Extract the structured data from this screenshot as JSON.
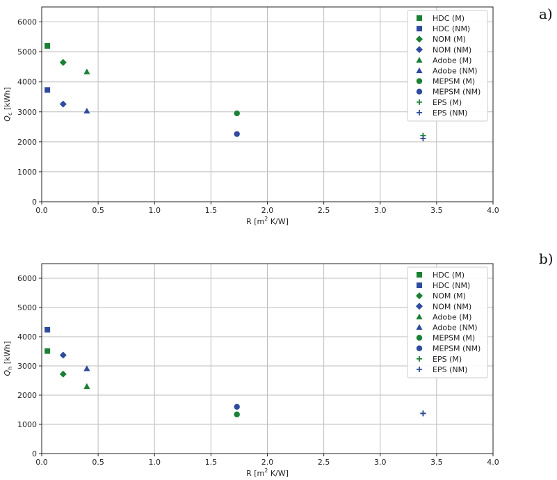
{
  "colors": {
    "M": "#1a8033",
    "NM": "#2f4b9e"
  },
  "chart_data": [
    {
      "type": "scatter",
      "panel_label": "a)",
      "title": "",
      "xlabel": "R [m",
      "xlabel_sup": "2",
      "xlabel_tail": " K/W]",
      "ylabel": "Q",
      "ylabel_sub": "c",
      "ylabel_tail": " [kWh]",
      "xlim": [
        0,
        4.0
      ],
      "ylim": [
        0,
        6500
      ],
      "xticks": [
        "0.0",
        "0.5",
        "1.0",
        "1.5",
        "2.0",
        "2.5",
        "3.0",
        "3.5",
        "4.0"
      ],
      "yticks": [
        "0",
        "1000",
        "2000",
        "3000",
        "4000",
        "5000",
        "6000"
      ],
      "grid": true,
      "legend_position": "top-right",
      "series": [
        {
          "name": "HDC (M)",
          "marker": "square",
          "group": "M",
          "x": [
            0.05
          ],
          "y": [
            5200
          ]
        },
        {
          "name": "HDC (NM)",
          "marker": "square",
          "group": "NM",
          "x": [
            0.05
          ],
          "y": [
            3730
          ]
        },
        {
          "name": "NOM (M)",
          "marker": "diamond",
          "group": "M",
          "x": [
            0.19
          ],
          "y": [
            4650
          ]
        },
        {
          "name": "NOM (NM)",
          "marker": "diamond",
          "group": "NM",
          "x": [
            0.19
          ],
          "y": [
            3260
          ]
        },
        {
          "name": "Adobe (M)",
          "marker": "triangle",
          "group": "M",
          "x": [
            0.4
          ],
          "y": [
            4340
          ]
        },
        {
          "name": "Adobe (NM)",
          "marker": "triangle",
          "group": "NM",
          "x": [
            0.4
          ],
          "y": [
            3030
          ]
        },
        {
          "name": "MEPSM (M)",
          "marker": "circle",
          "group": "M",
          "x": [
            1.73
          ],
          "y": [
            2950
          ]
        },
        {
          "name": "MEPSM (NM)",
          "marker": "circle",
          "group": "NM",
          "x": [
            1.73
          ],
          "y": [
            2260
          ]
        },
        {
          "name": "EPS (M)",
          "marker": "plus",
          "group": "M",
          "x": [
            3.38
          ],
          "y": [
            2210
          ]
        },
        {
          "name": "EPS (NM)",
          "marker": "plus",
          "group": "NM",
          "x": [
            3.38
          ],
          "y": [
            2110
          ]
        }
      ]
    },
    {
      "type": "scatter",
      "panel_label": "b)",
      "title": "",
      "xlabel": "R [m",
      "xlabel_sup": "2",
      "xlabel_tail": " K/W]",
      "ylabel": "Q",
      "ylabel_sub": "h",
      "ylabel_tail": " [kWh]",
      "xlim": [
        0,
        4.0
      ],
      "ylim": [
        0,
        6500
      ],
      "xticks": [
        "0.0",
        "0.5",
        "1.0",
        "1.5",
        "2.0",
        "2.5",
        "3.0",
        "3.5",
        "4.0"
      ],
      "yticks": [
        "0",
        "1000",
        "2000",
        "3000",
        "4000",
        "5000",
        "6000"
      ],
      "grid": true,
      "legend_position": "top-right",
      "series": [
        {
          "name": "HDC (M)",
          "marker": "square",
          "group": "M",
          "x": [
            0.05
          ],
          "y": [
            3510
          ]
        },
        {
          "name": "HDC (NM)",
          "marker": "square",
          "group": "NM",
          "x": [
            0.05
          ],
          "y": [
            4240
          ]
        },
        {
          "name": "NOM (M)",
          "marker": "diamond",
          "group": "M",
          "x": [
            0.19
          ],
          "y": [
            2720
          ]
        },
        {
          "name": "NOM (NM)",
          "marker": "diamond",
          "group": "NM",
          "x": [
            0.19
          ],
          "y": [
            3370
          ]
        },
        {
          "name": "Adobe (M)",
          "marker": "triangle",
          "group": "M",
          "x": [
            0.4
          ],
          "y": [
            2300
          ]
        },
        {
          "name": "Adobe (NM)",
          "marker": "triangle",
          "group": "NM",
          "x": [
            0.4
          ],
          "y": [
            2910
          ]
        },
        {
          "name": "MEPSM (M)",
          "marker": "circle",
          "group": "M",
          "x": [
            1.73
          ],
          "y": [
            1340
          ]
        },
        {
          "name": "MEPSM (NM)",
          "marker": "circle",
          "group": "NM",
          "x": [
            1.73
          ],
          "y": [
            1600
          ]
        },
        {
          "name": "EPS (M)",
          "marker": "plus",
          "group": "M",
          "x": [
            3.38
          ],
          "y": [
            1380
          ]
        },
        {
          "name": "EPS (NM)",
          "marker": "plus",
          "group": "NM",
          "x": [
            3.38
          ],
          "y": [
            1370
          ]
        }
      ]
    }
  ]
}
